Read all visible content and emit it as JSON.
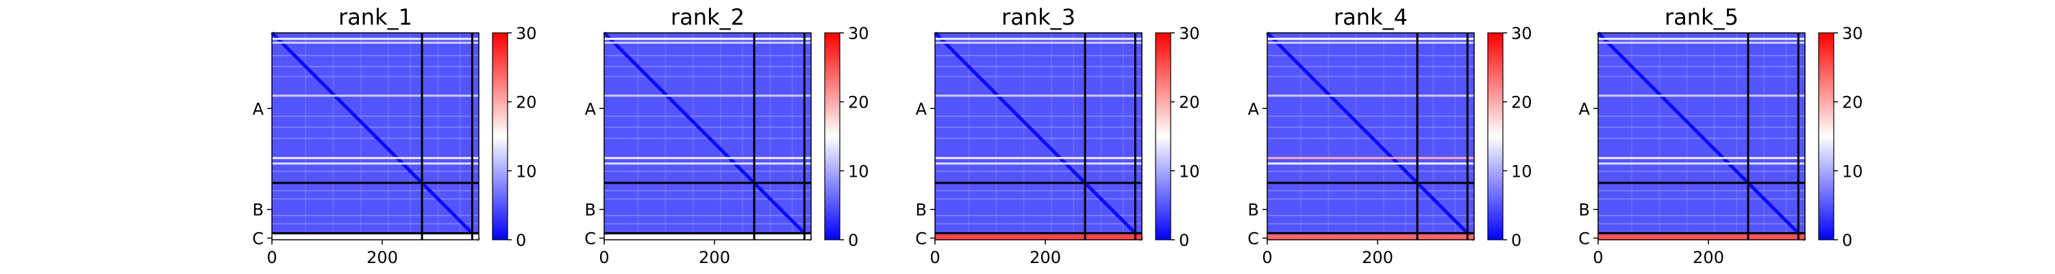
{
  "chart_data": [
    {
      "type": "heatmap",
      "title": "rank_1",
      "matrix_size": 375,
      "x_ticks": [
        0,
        200
      ],
      "y_ticks": [
        {
          "label": "A",
          "value": 137
        },
        {
          "label": "B",
          "value": 320
        },
        {
          "label": "C",
          "value": 372
        }
      ],
      "chain_boundaries": [
        272,
        363
      ],
      "colorbar": {
        "min": 0,
        "max": 30,
        "ticks": [
          0,
          10,
          20,
          30
        ],
        "colormap": "bwr"
      },
      "base_value": 5,
      "hot_rows": [
        {
          "row": 9,
          "value": 14
        },
        {
          "row": 16,
          "value": 12
        },
        {
          "row": 112,
          "value": 12
        },
        {
          "row": 225,
          "value": 14
        },
        {
          "row": 235,
          "value": 13
        }
      ],
      "bottom_row_value": 15
    },
    {
      "type": "heatmap",
      "title": "rank_2",
      "matrix_size": 375,
      "x_ticks": [
        0,
        200
      ],
      "y_ticks": [
        {
          "label": "A",
          "value": 137
        },
        {
          "label": "B",
          "value": 320
        },
        {
          "label": "C",
          "value": 372
        }
      ],
      "chain_boundaries": [
        272,
        363
      ],
      "colorbar": {
        "min": 0,
        "max": 30,
        "ticks": [
          0,
          10,
          20,
          30
        ],
        "colormap": "bwr"
      },
      "base_value": 5,
      "hot_rows": [
        {
          "row": 9,
          "value": 15
        },
        {
          "row": 16,
          "value": 12
        },
        {
          "row": 112,
          "value": 12
        },
        {
          "row": 225,
          "value": 14
        },
        {
          "row": 235,
          "value": 13
        }
      ],
      "bottom_row_value": 15
    },
    {
      "type": "heatmap",
      "title": "rank_3",
      "matrix_size": 375,
      "x_ticks": [
        0,
        200
      ],
      "y_ticks": [
        {
          "label": "A",
          "value": 137
        },
        {
          "label": "B",
          "value": 320
        },
        {
          "label": "C",
          "value": 372
        }
      ],
      "chain_boundaries": [
        272,
        363
      ],
      "colorbar": {
        "min": 0,
        "max": 30,
        "ticks": [
          0,
          10,
          20,
          30
        ],
        "colormap": "bwr"
      },
      "base_value": 5,
      "hot_rows": [
        {
          "row": 9,
          "value": 14
        },
        {
          "row": 16,
          "value": 12
        },
        {
          "row": 112,
          "value": 12
        },
        {
          "row": 225,
          "value": 14
        },
        {
          "row": 235,
          "value": 13
        }
      ],
      "bottom_row_value": 26
    },
    {
      "type": "heatmap",
      "title": "rank_4",
      "matrix_size": 375,
      "x_ticks": [
        0,
        200
      ],
      "y_ticks": [
        {
          "label": "A",
          "value": 137
        },
        {
          "label": "B",
          "value": 320
        },
        {
          "label": "C",
          "value": 372
        }
      ],
      "chain_boundaries": [
        272,
        363
      ],
      "colorbar": {
        "min": 0,
        "max": 30,
        "ticks": [
          0,
          10,
          20,
          30
        ],
        "colormap": "bwr"
      },
      "base_value": 5,
      "hot_rows": [
        {
          "row": 9,
          "value": 15
        },
        {
          "row": 16,
          "value": 12
        },
        {
          "row": 112,
          "value": 12
        },
        {
          "row": 225,
          "value": 20
        },
        {
          "row": 235,
          "value": 14
        }
      ],
      "bottom_row_value": 24
    },
    {
      "type": "heatmap",
      "title": "rank_5",
      "matrix_size": 375,
      "x_ticks": [
        0,
        200
      ],
      "y_ticks": [
        {
          "label": "A",
          "value": 137
        },
        {
          "label": "B",
          "value": 320
        },
        {
          "label": "C",
          "value": 372
        }
      ],
      "chain_boundaries": [
        272,
        363
      ],
      "colorbar": {
        "min": 0,
        "max": 30,
        "ticks": [
          0,
          10,
          20,
          30
        ],
        "colormap": "bwr"
      },
      "base_value": 5,
      "hot_rows": [
        {
          "row": 9,
          "value": 14
        },
        {
          "row": 16,
          "value": 12
        },
        {
          "row": 112,
          "value": 12
        },
        {
          "row": 225,
          "value": 14
        },
        {
          "row": 235,
          "value": 13
        }
      ],
      "bottom_row_value": 25
    }
  ]
}
